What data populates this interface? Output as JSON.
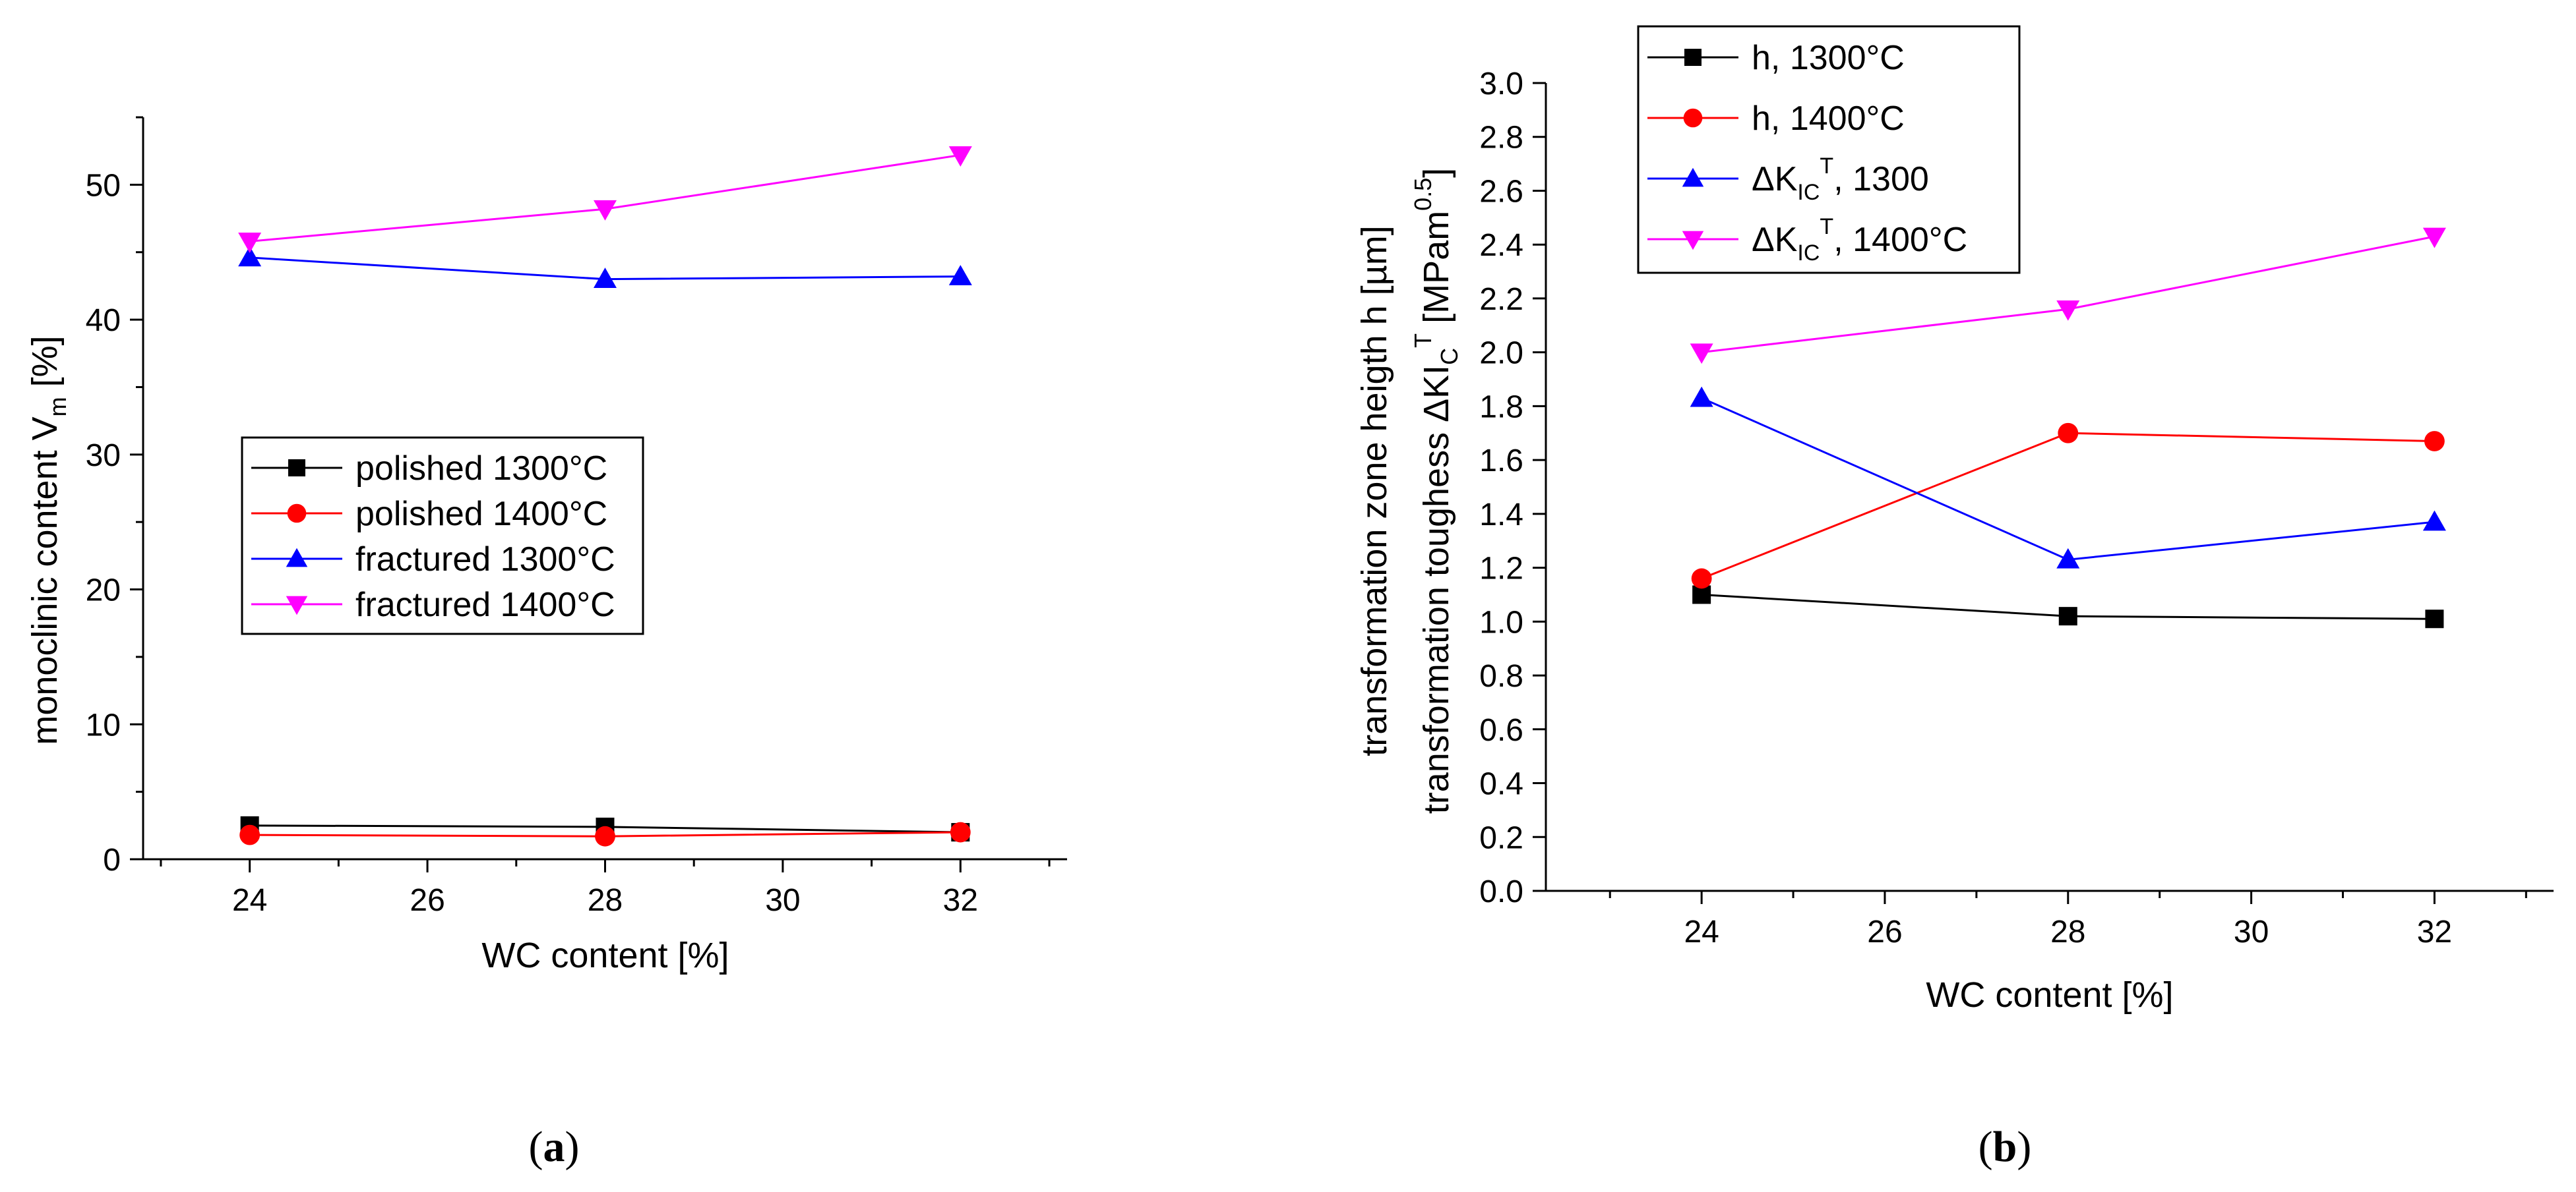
{
  "chart_data": [
    {
      "type": "line",
      "panel": "a",
      "caption_open": "(",
      "caption_letter": "a",
      "caption_close": ")",
      "xlabel": "WC content [%]",
      "ylabel_main": "monoclinic content V",
      "ylabel_sub": "m",
      "ylabel_tail": " [%]",
      "xlim": [
        22.8,
        33.2
      ],
      "ylim": [
        0,
        55
      ],
      "xticks": [
        24,
        26,
        28,
        30,
        32
      ],
      "yticks": [
        0,
        10,
        20,
        30,
        40,
        50
      ],
      "x": [
        24,
        28,
        32
      ],
      "legend_position": "center-left",
      "series": [
        {
          "name": "polished  1300°C",
          "color": "#000000",
          "marker": "square",
          "values": [
            2.5,
            2.4,
            2.0
          ]
        },
        {
          "name": "polished  1400°C",
          "color": "#ff0000",
          "marker": "circle",
          "values": [
            1.8,
            1.7,
            2.0
          ]
        },
        {
          "name": "fractured 1300°C",
          "color": "#0000ff",
          "marker": "triangle-up",
          "values": [
            44.6,
            43.0,
            43.2
          ]
        },
        {
          "name": "fractured 1400°C",
          "color": "#ff00ff",
          "marker": "triangle-down",
          "values": [
            45.8,
            48.2,
            52.2
          ]
        }
      ]
    },
    {
      "type": "line",
      "panel": "b",
      "caption_open": "(",
      "caption_letter": "b",
      "caption_close": ")",
      "xlabel": "WC content [%]",
      "ylabel_line1": "transformation zone heigth h [µm]",
      "ylabel_line2_a": "transformation toughess ΔKI",
      "ylabel_line2_sub": "C",
      "ylabel_line2_sup": "T",
      "ylabel_line2_b": " [MPam",
      "ylabel_line2_sup2": "0.5",
      "ylabel_line2_c": "]",
      "xlim": [
        22.3,
        33.3
      ],
      "ylim": [
        0,
        3.0
      ],
      "xticks": [
        24,
        26,
        28,
        30,
        32
      ],
      "yticks": [
        0.0,
        0.2,
        0.4,
        0.6,
        0.8,
        1.0,
        1.2,
        1.4,
        1.6,
        1.8,
        2.0,
        2.2,
        2.4,
        2.6,
        2.8,
        3.0
      ],
      "x": [
        24,
        28,
        32
      ],
      "legend_position": "top-left",
      "series": [
        {
          "name": "h, 1300°C",
          "color": "#000000",
          "marker": "square",
          "values": [
            1.1,
            1.02,
            1.01
          ]
        },
        {
          "name": "h, 1400°C",
          "color": "#ff0000",
          "marker": "circle",
          "values": [
            1.16,
            1.7,
            1.67
          ]
        },
        {
          "name": "ΔK, 1300",
          "name_main": "ΔK",
          "name_sub": "IC",
          "name_sup": "T",
          "name_tail": ", 1300",
          "color": "#0000ff",
          "marker": "triangle-up",
          "values": [
            1.83,
            1.23,
            1.37
          ]
        },
        {
          "name": "ΔK, 1400°C",
          "name_main": "ΔK",
          "name_sub": "IC",
          "name_sup": "T",
          "name_tail": ", 1400°C",
          "color": "#ff00ff",
          "marker": "triangle-down",
          "values": [
            2.0,
            2.16,
            2.43
          ]
        }
      ]
    }
  ]
}
